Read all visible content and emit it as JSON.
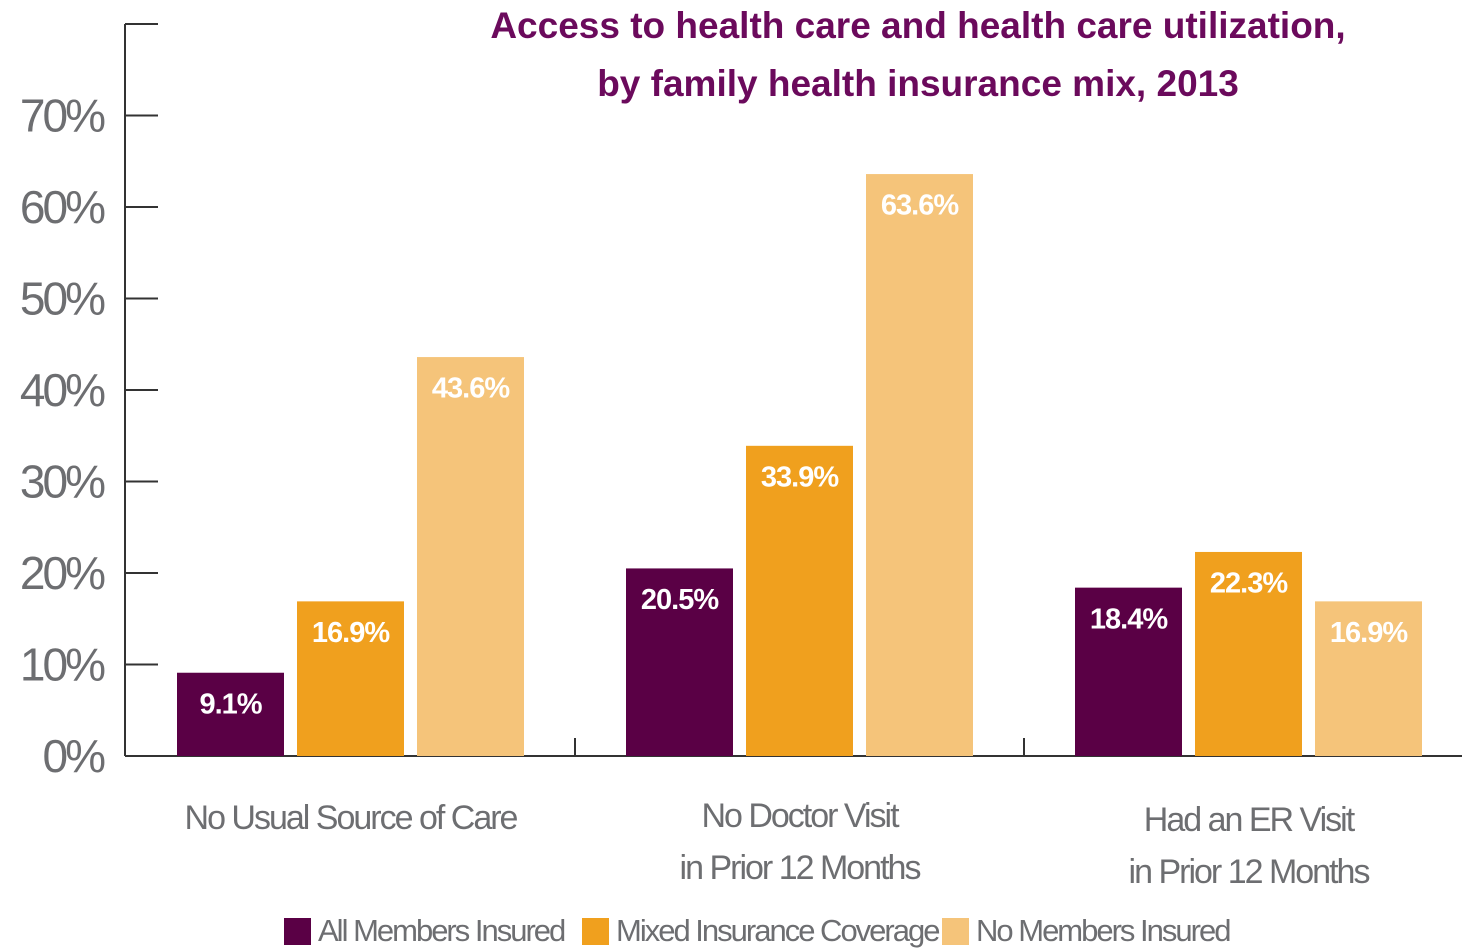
{
  "chart_data": {
    "type": "bar",
    "title": [
      "Access to health care and health care utilization,",
      "by family health insurance mix, 2013"
    ],
    "categories": [
      [
        "No Usual Source of Care"
      ],
      [
        "No Doctor Visit",
        "in Prior 12 Months"
      ],
      [
        "Had an ER Visit",
        "in Prior 12 Months"
      ]
    ],
    "series": [
      {
        "name": "All Members Insured",
        "color": "#5a0045",
        "values": [
          9.1,
          20.5,
          18.4
        ],
        "value_labels": [
          "9.1%",
          "20.5%",
          "18.4%"
        ]
      },
      {
        "name": "Mixed Insurance Coverage",
        "color": "#f0a01e",
        "values": [
          16.9,
          33.9,
          22.3
        ],
        "value_labels": [
          "16.9%",
          "33.9%",
          "22.3%"
        ]
      },
      {
        "name": "No Members Insured",
        "color": "#f5c47a",
        "values": [
          43.6,
          63.6,
          16.9
        ],
        "value_labels": [
          "43.6%",
          "63.6%",
          "16.9%"
        ]
      }
    ],
    "ylim": [
      0,
      80
    ],
    "yticks": [
      {
        "value": 0,
        "label": "0%"
      },
      {
        "value": 10,
        "label": "10%"
      },
      {
        "value": 20,
        "label": "20%"
      },
      {
        "value": 30,
        "label": "30%"
      },
      {
        "value": 40,
        "label": "40%"
      },
      {
        "value": 50,
        "label": "50%"
      },
      {
        "value": 60,
        "label": "60%"
      },
      {
        "value": 70,
        "label": "70%"
      }
    ],
    "legend": "bottom"
  }
}
